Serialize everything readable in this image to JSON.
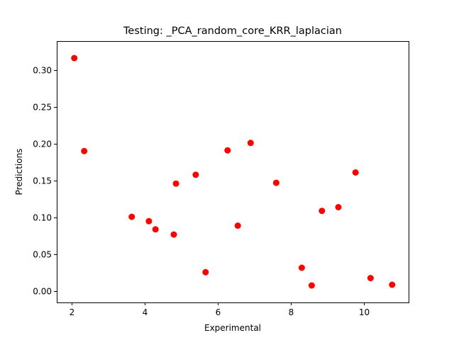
{
  "chart_data": {
    "type": "scatter",
    "title": "Testing: _PCA_random_core_KRR_laplacian",
    "xlabel": "Experimental",
    "ylabel": "Predictions",
    "xlim": [
      1.6,
      11.22
    ],
    "ylim": [
      -0.015,
      0.339
    ],
    "xticks": [
      2,
      4,
      6,
      8,
      10
    ],
    "xtick_labels": [
      "2",
      "4",
      "6",
      "8",
      "10"
    ],
    "yticks": [
      0.0,
      0.05,
      0.1,
      0.15,
      0.2,
      0.25,
      0.3
    ],
    "ytick_labels": [
      "0.00",
      "0.05",
      "0.10",
      "0.15",
      "0.20",
      "0.25",
      "0.30"
    ],
    "grid": false,
    "marker_color": "#ff0000",
    "x": [
      2.08,
      2.35,
      3.65,
      4.12,
      4.3,
      4.8,
      4.86,
      5.4,
      5.67,
      6.27,
      6.55,
      6.9,
      7.6,
      8.3,
      8.57,
      8.85,
      9.3,
      9.77,
      10.18,
      10.77
    ],
    "y": [
      0.316,
      0.19,
      0.101,
      0.095,
      0.084,
      0.077,
      0.146,
      0.158,
      0.026,
      0.191,
      0.089,
      0.201,
      0.147,
      0.032,
      0.008,
      0.109,
      0.114,
      0.161,
      0.018,
      0.009
    ]
  }
}
